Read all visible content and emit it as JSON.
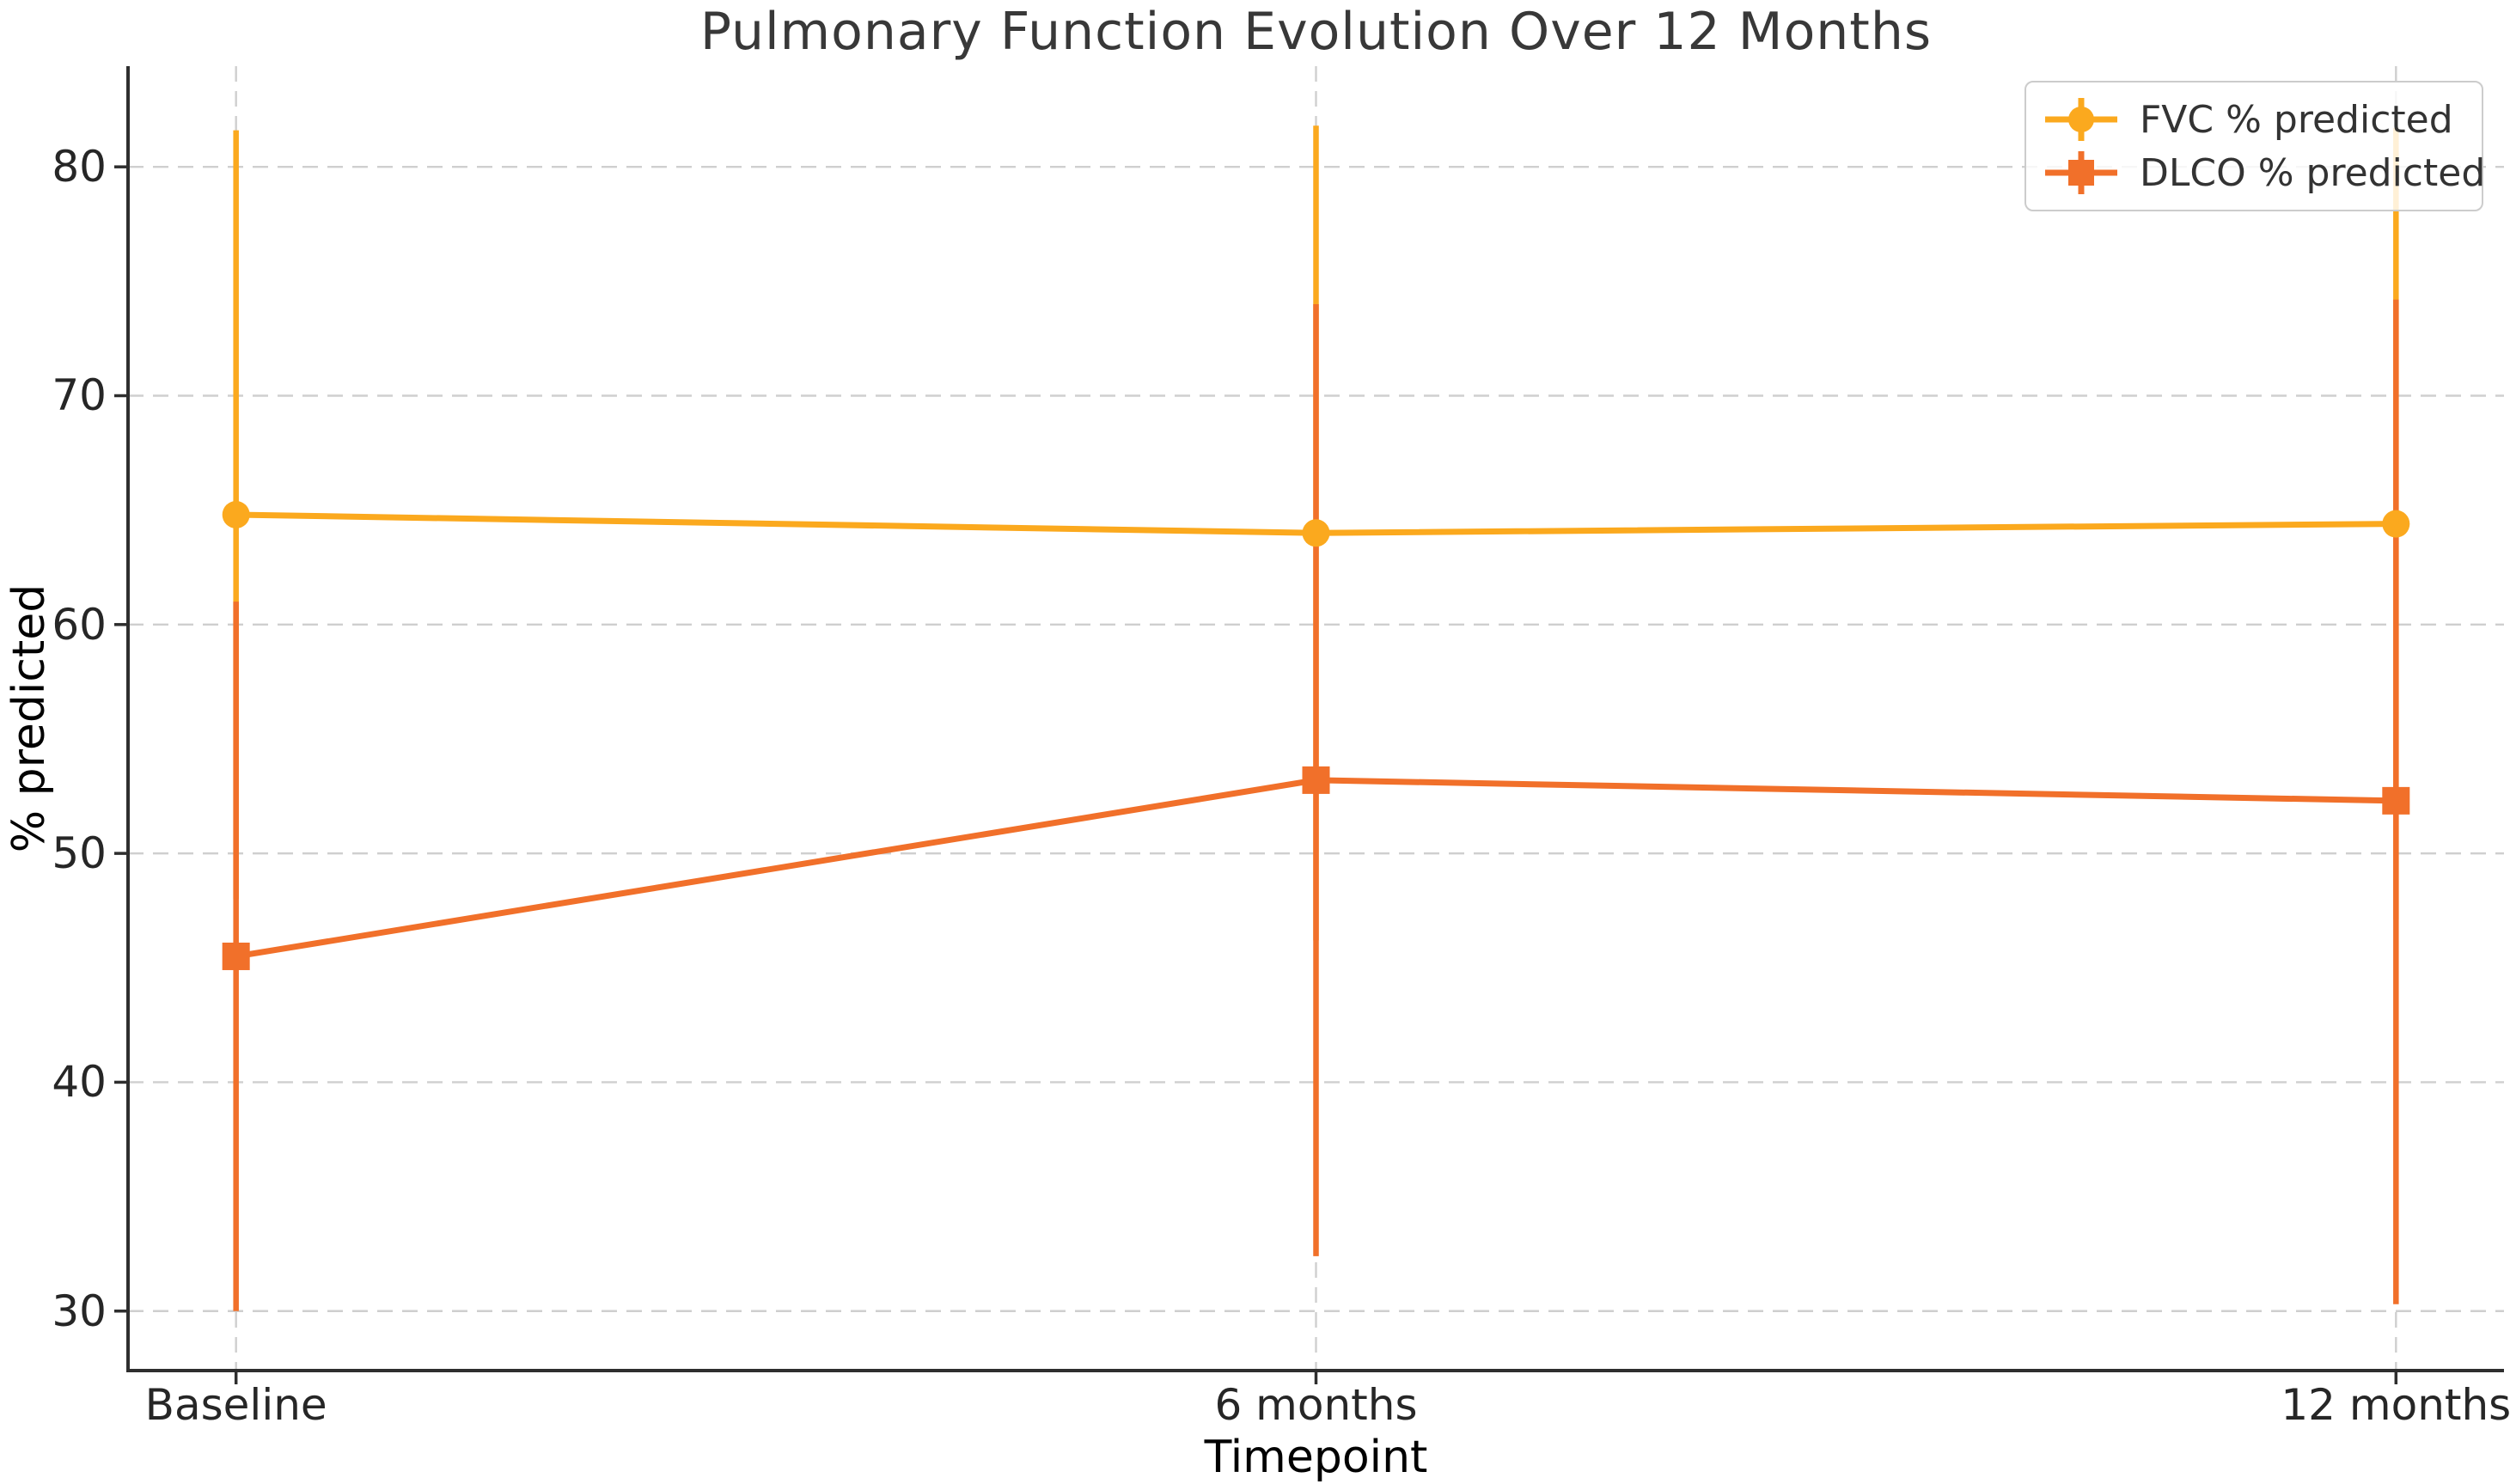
{
  "chart_data": {
    "type": "line",
    "title": "Pulmonary Function Evolution Over 12 Months",
    "xlabel": "Timepoint",
    "ylabel": "% predicted",
    "categories": [
      "Baseline",
      "6 months",
      "12 months"
    ],
    "yticks": [
      30,
      40,
      50,
      60,
      70,
      80
    ],
    "ylim": [
      27.4,
      84.4
    ],
    "xlim_pad": 0.1,
    "grid": {
      "visible": true,
      "style": "dashed",
      "color": "#cfcfcf"
    },
    "legend_position": "upper right",
    "series": [
      {
        "name": "FVC % predicted",
        "color": "#FBA91E",
        "marker": "circle",
        "values": [
          64.8,
          64.0,
          64.4
        ],
        "err_low": [
          48.0,
          46.2,
          47.1
        ],
        "err_high": [
          81.6,
          81.8,
          81.7
        ]
      },
      {
        "name": "DLCO % predicted",
        "color": "#F1702A",
        "marker": "square",
        "values": [
          45.5,
          53.2,
          52.3
        ],
        "err_low": [
          30.0,
          32.4,
          30.3
        ],
        "err_high": [
          61.0,
          74.0,
          74.2
        ]
      }
    ]
  },
  "style": {
    "spine_color": "#2e2e2e",
    "tick_text_color": "#262626",
    "title_color": "#383838"
  }
}
